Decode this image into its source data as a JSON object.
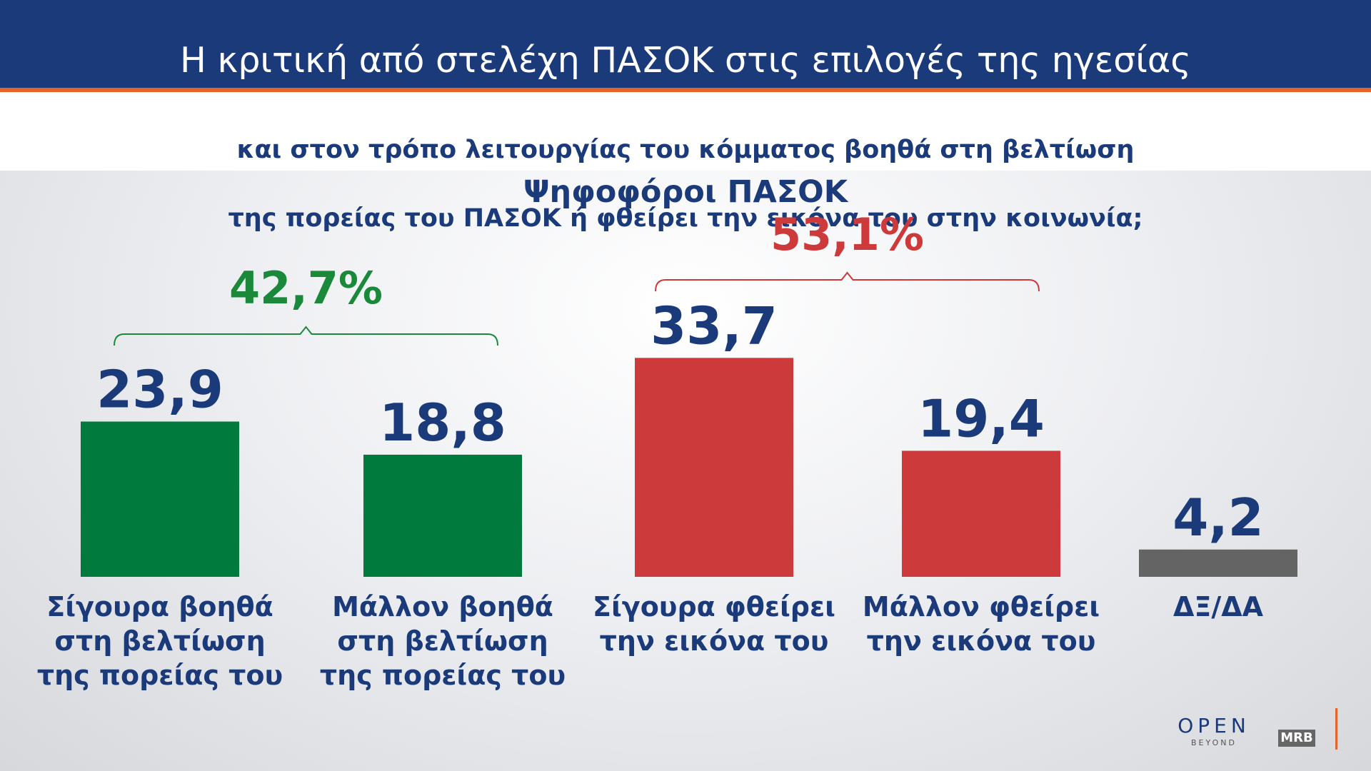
{
  "chart_data": {
    "type": "bar",
    "title": "Η κριτική από στελέχη ΠΑΣΟΚ στις επιλογές της ηγεσίας",
    "subtitle": [
      "και στον τρόπο λειτουργίας του κόμματος βοηθά στη βελτίωση",
      "της πορείας του ΠΑΣΟΚ ή φθείρει την εικόνα του στην κοινωνία;"
    ],
    "chart_title": "Ψηφοφόροι ΠΑΣΟΚ",
    "categories": [
      "Σίγουρα βοηθά\nστη βελτίωση\nτης πορείας του",
      "Μάλλον βοηθά\nστη βελτίωση\nτης πορείας του",
      "Σίγουρα φθείρει\nτην εικόνα του",
      "Μάλλον φθείρει\nτην εικόνα του",
      "ΔΞ/ΔΑ"
    ],
    "values": [
      23.9,
      18.8,
      33.7,
      19.4,
      4.2
    ],
    "value_labels": [
      "23,9",
      "18,8",
      "33,7",
      "19,4",
      "4,2"
    ],
    "colors": [
      "#007a3d",
      "#007a3d",
      "#cc3a3c",
      "#cc3a3c",
      "#646464"
    ],
    "annotations": [
      {
        "text": "42,7%",
        "color": "#1a8a3a"
      },
      {
        "text": "53,1%",
        "color": "#cc3a3c"
      }
    ],
    "logos": [
      "OPEN",
      "BEYOND",
      "MRB"
    ]
  }
}
